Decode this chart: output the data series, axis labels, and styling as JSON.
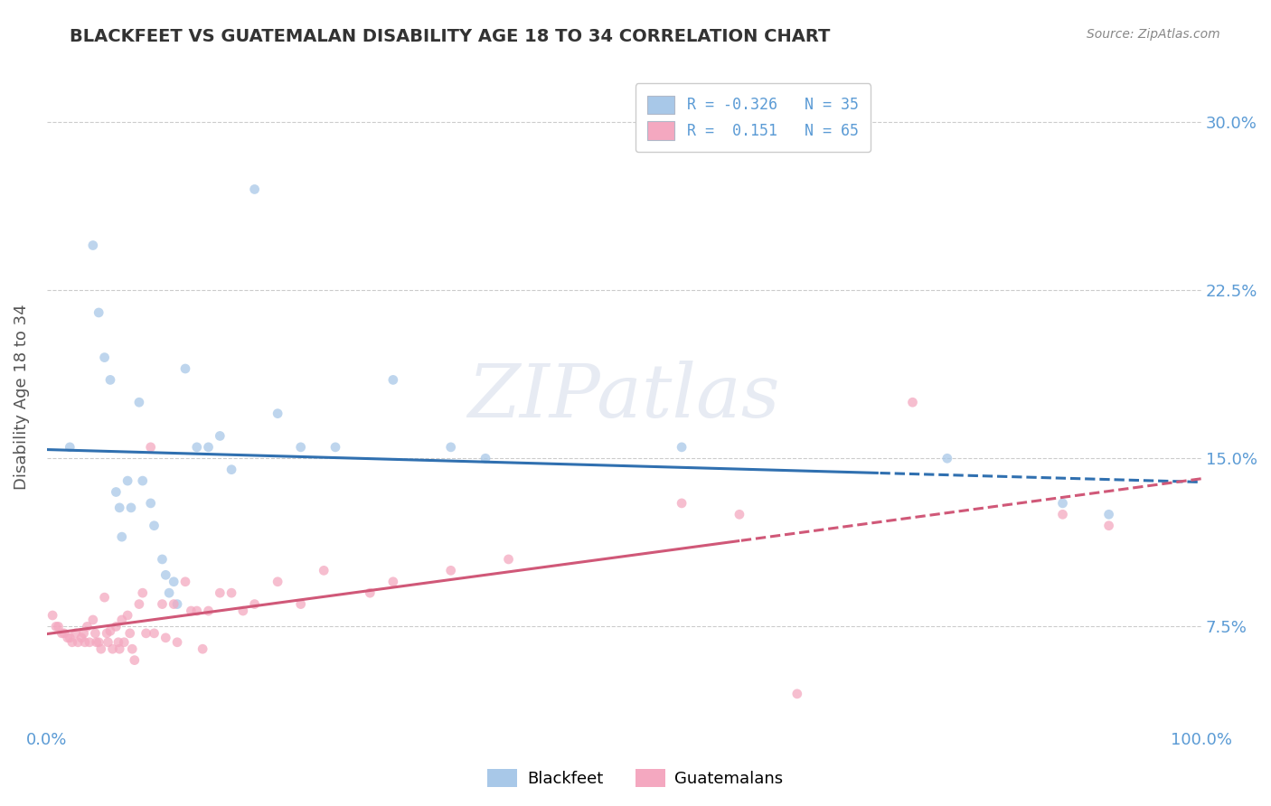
{
  "title": "BLACKFEET VS GUATEMALAN DISABILITY AGE 18 TO 34 CORRELATION CHART",
  "source": "Source: ZipAtlas.com",
  "ylabel": "Disability Age 18 to 34",
  "xlim": [
    0.0,
    1.0
  ],
  "ylim": [
    0.03,
    0.325
  ],
  "yticks": [
    0.075,
    0.15,
    0.225,
    0.3
  ],
  "ytick_labels": [
    "7.5%",
    "15.0%",
    "22.5%",
    "30.0%"
  ],
  "xticks": [
    0.0,
    1.0
  ],
  "xtick_labels": [
    "0.0%",
    "100.0%"
  ],
  "blackfeet_color": "#a8c8e8",
  "guatemalan_color": "#f4a8c0",
  "blackfeet_line_color": "#3070b0",
  "guatemalan_line_color": "#d05878",
  "legend_blue_color": "#a8c8e8",
  "legend_pink_color": "#f4a8c0",
  "R_blackfeet": -0.326,
  "N_blackfeet": 35,
  "R_guatemalan": 0.151,
  "N_guatemalan": 65,
  "watermark": "ZIPatlas",
  "blackfeet_x": [
    0.02,
    0.04,
    0.045,
    0.05,
    0.055,
    0.06,
    0.063,
    0.065,
    0.07,
    0.073,
    0.08,
    0.083,
    0.09,
    0.093,
    0.1,
    0.103,
    0.106,
    0.11,
    0.113,
    0.12,
    0.13,
    0.14,
    0.15,
    0.16,
    0.18,
    0.2,
    0.22,
    0.25,
    0.3,
    0.35,
    0.38,
    0.55,
    0.78,
    0.88,
    0.92
  ],
  "blackfeet_y": [
    0.155,
    0.245,
    0.215,
    0.195,
    0.185,
    0.135,
    0.128,
    0.115,
    0.14,
    0.128,
    0.175,
    0.14,
    0.13,
    0.12,
    0.105,
    0.098,
    0.09,
    0.095,
    0.085,
    0.19,
    0.155,
    0.155,
    0.16,
    0.145,
    0.27,
    0.17,
    0.155,
    0.155,
    0.185,
    0.155,
    0.15,
    0.155,
    0.15,
    0.13,
    0.125
  ],
  "guatemalan_x": [
    0.005,
    0.008,
    0.01,
    0.013,
    0.015,
    0.018,
    0.02,
    0.022,
    0.025,
    0.027,
    0.03,
    0.032,
    0.033,
    0.035,
    0.037,
    0.04,
    0.042,
    0.043,
    0.045,
    0.047,
    0.05,
    0.052,
    0.053,
    0.055,
    0.057,
    0.06,
    0.062,
    0.063,
    0.065,
    0.067,
    0.07,
    0.072,
    0.074,
    0.076,
    0.08,
    0.083,
    0.086,
    0.09,
    0.093,
    0.1,
    0.103,
    0.11,
    0.113,
    0.12,
    0.125,
    0.13,
    0.135,
    0.14,
    0.15,
    0.16,
    0.17,
    0.18,
    0.2,
    0.22,
    0.24,
    0.28,
    0.3,
    0.35,
    0.4,
    0.55,
    0.6,
    0.65,
    0.75,
    0.88,
    0.92
  ],
  "guatemalan_y": [
    0.08,
    0.075,
    0.075,
    0.072,
    0.072,
    0.07,
    0.07,
    0.068,
    0.072,
    0.068,
    0.07,
    0.072,
    0.068,
    0.075,
    0.068,
    0.078,
    0.072,
    0.068,
    0.068,
    0.065,
    0.088,
    0.072,
    0.068,
    0.073,
    0.065,
    0.075,
    0.068,
    0.065,
    0.078,
    0.068,
    0.08,
    0.072,
    0.065,
    0.06,
    0.085,
    0.09,
    0.072,
    0.155,
    0.072,
    0.085,
    0.07,
    0.085,
    0.068,
    0.095,
    0.082,
    0.082,
    0.065,
    0.082,
    0.09,
    0.09,
    0.082,
    0.085,
    0.095,
    0.085,
    0.1,
    0.09,
    0.095,
    0.1,
    0.105,
    0.13,
    0.125,
    0.045,
    0.175,
    0.125,
    0.12
  ],
  "background_color": "#ffffff",
  "grid_color": "#cccccc",
  "title_color": "#333333",
  "axis_label_color": "#555555",
  "tick_color": "#5b9bd5",
  "watermark_color": "#d0d8e8",
  "watermark_alpha": 0.5
}
